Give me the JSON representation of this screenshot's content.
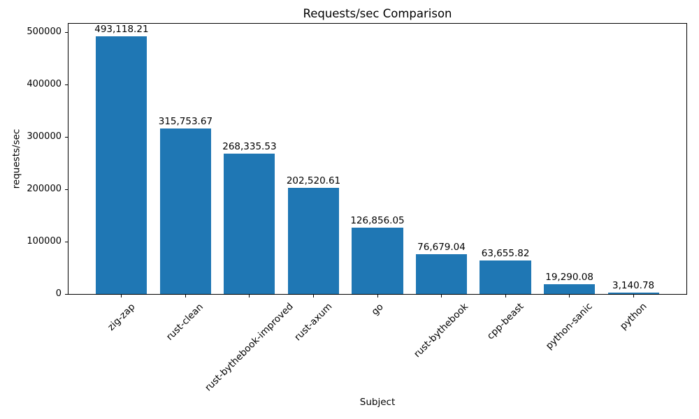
{
  "chart_data": {
    "type": "bar",
    "title": "Requests/sec Comparison",
    "xlabel": "Subject",
    "ylabel": "requests/sec",
    "categories": [
      "zig-zap",
      "rust-clean",
      "rust-bythebook-improved",
      "rust-axum",
      "go",
      "rust-bythebook",
      "cpp-beast",
      "python-sanic",
      "python"
    ],
    "values": [
      493118.21,
      315753.67,
      268335.53,
      202520.61,
      126856.05,
      76679.04,
      63655.82,
      19290.08,
      3140.78
    ],
    "value_labels": [
      "493,118.21",
      "315,753.67",
      "268,335.53",
      "202,520.61",
      "126,856.05",
      "76,679.04",
      "63,655.82",
      "19,290.08",
      "3,140.78"
    ],
    "y_ticks": [
      0,
      100000,
      200000,
      300000,
      400000,
      500000
    ],
    "y_tick_labels": [
      "0",
      "100000",
      "200000",
      "300000",
      "400000",
      "500000"
    ],
    "ylim": [
      0,
      517774
    ],
    "xtick_rotation_deg": 45,
    "bar_color": "#1f77b4",
    "background_color": "#ffffff",
    "text_color": "#000000",
    "grid": false,
    "legend": null
  }
}
